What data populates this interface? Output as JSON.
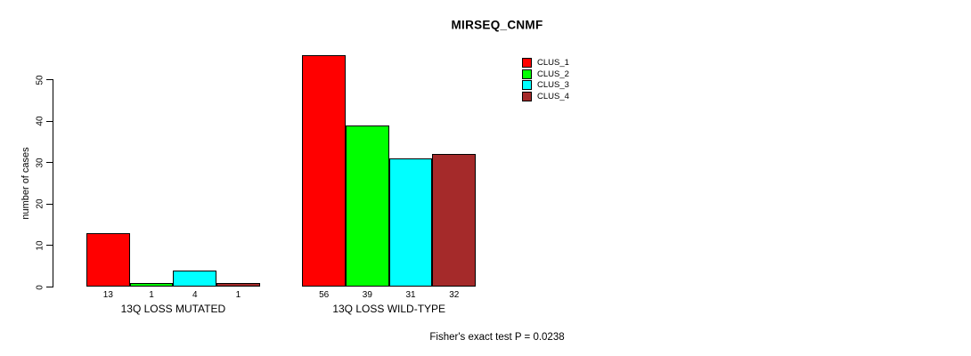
{
  "chart_data": {
    "type": "bar",
    "title": "MIRSEQ_CNMF",
    "ylabel": "number of cases",
    "xlabel": "",
    "yticks": [
      0,
      10,
      20,
      30,
      40,
      50
    ],
    "ylim": [
      0,
      56
    ],
    "grid": false,
    "legend_position": "top-right",
    "annotation": "Fisher's exact test P = 0.0238",
    "series": [
      {
        "name": "CLUS_1",
        "color": "#FF0000"
      },
      {
        "name": "CLUS_2",
        "color": "#00FF00"
      },
      {
        "name": "CLUS_3",
        "color": "#00FFFF"
      },
      {
        "name": "CLUS_4",
        "color": "#A52A2A"
      }
    ],
    "groups": [
      {
        "label": "13Q LOSS MUTATED",
        "values": [
          13,
          1,
          4,
          1
        ]
      },
      {
        "label": "13Q LOSS WILD-TYPE",
        "values": [
          56,
          39,
          31,
          32
        ]
      }
    ]
  }
}
